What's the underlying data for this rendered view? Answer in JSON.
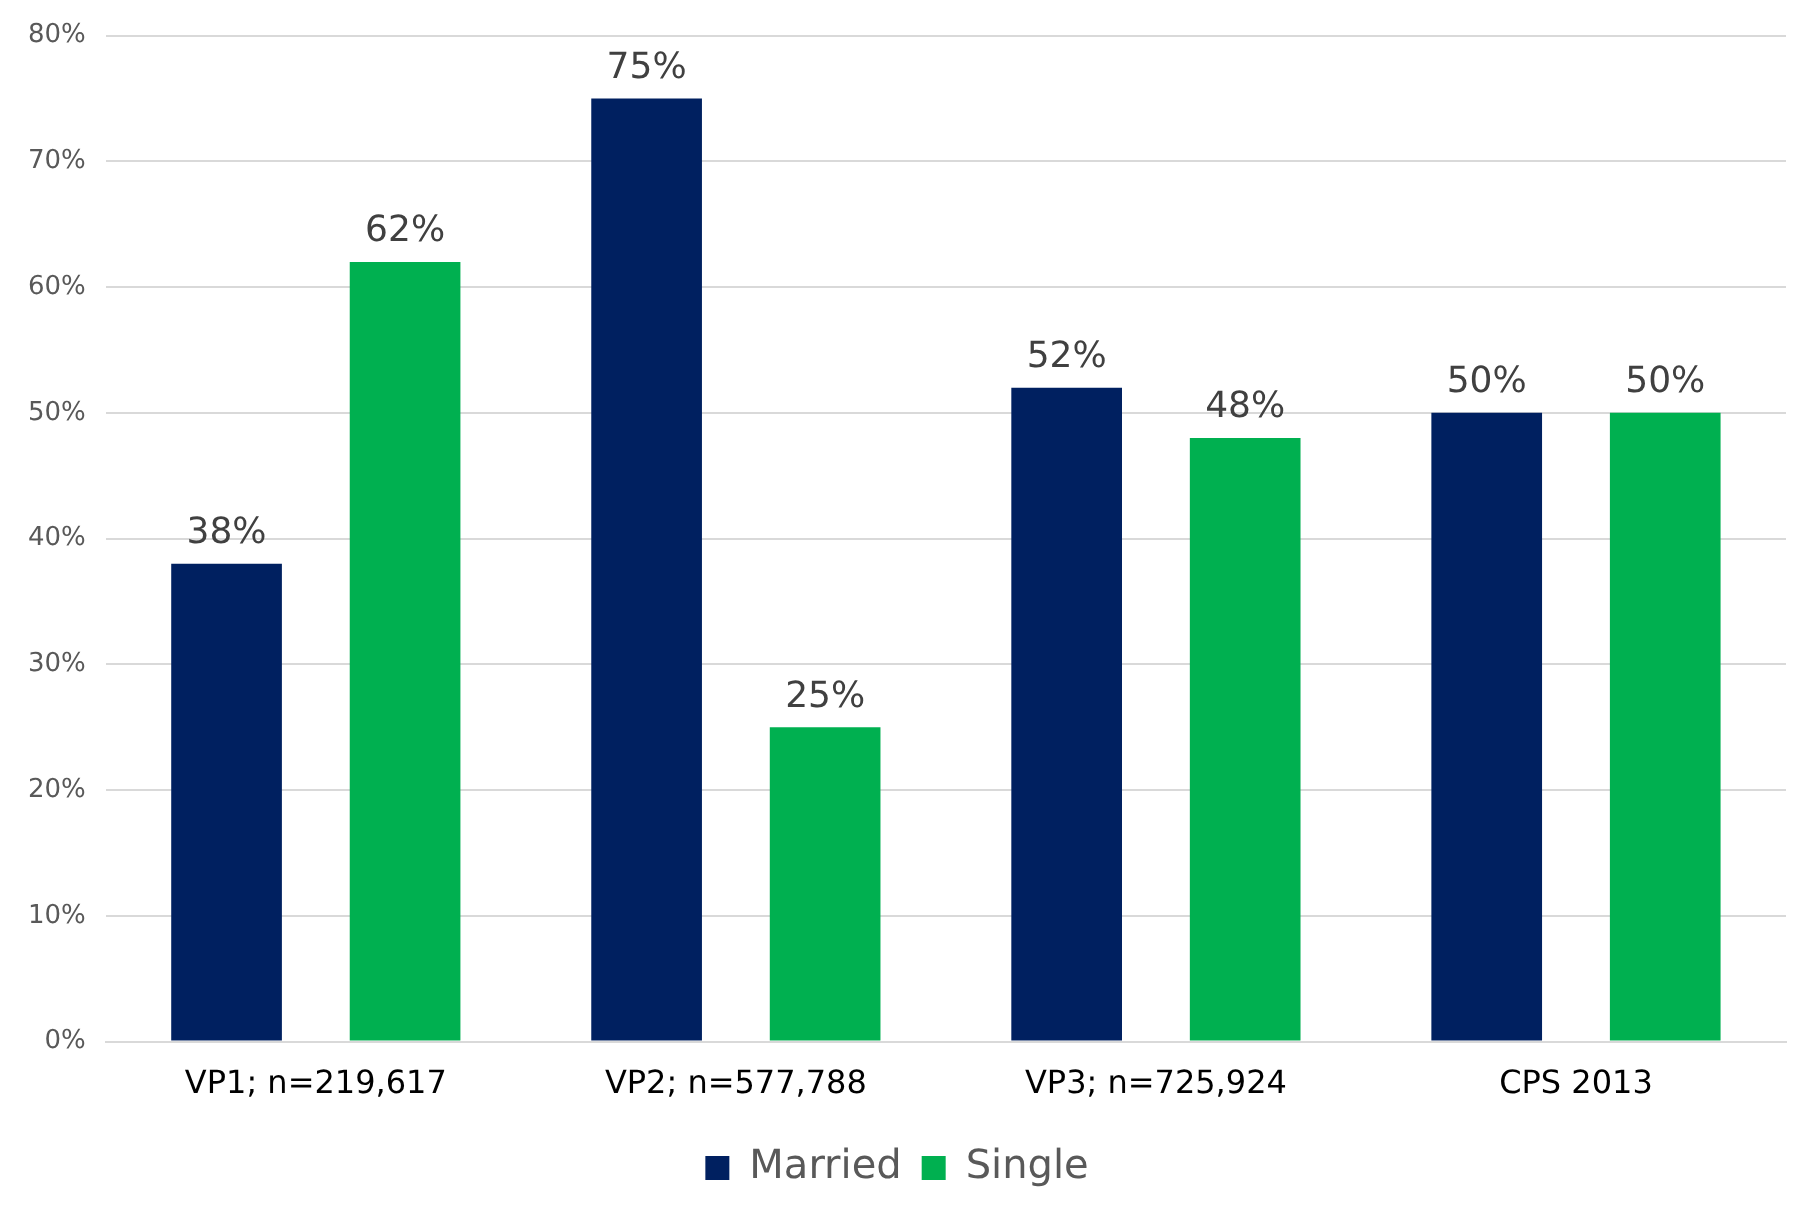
{
  "chart_data": {
    "type": "bar",
    "categories": [
      "VP1; n=219,617",
      "VP2; n=577,788",
      "VP3; n=725,924",
      "CPS 2013"
    ],
    "series": [
      {
        "name": "Married",
        "color": "#002060",
        "values": [
          38,
          75,
          52,
          50
        ],
        "value_labels": [
          "38%",
          "75%",
          "52%",
          "50%"
        ]
      },
      {
        "name": "Single",
        "color": "#00b050",
        "values": [
          62,
          25,
          48,
          50
        ],
        "value_labels": [
          "62%",
          "25%",
          "48%",
          "50%"
        ]
      }
    ],
    "ylim": [
      0,
      80
    ],
    "yticks": [
      {
        "value": 0,
        "label": "0%"
      },
      {
        "value": 10,
        "label": "10%"
      },
      {
        "value": 20,
        "label": "20%"
      },
      {
        "value": 30,
        "label": "30%"
      },
      {
        "value": 40,
        "label": "40%"
      },
      {
        "value": 50,
        "label": "50%"
      },
      {
        "value": 60,
        "label": "60%"
      },
      {
        "value": 70,
        "label": "70%"
      },
      {
        "value": 80,
        "label": "80%"
      }
    ],
    "grid": "y",
    "legend": "bottom"
  }
}
